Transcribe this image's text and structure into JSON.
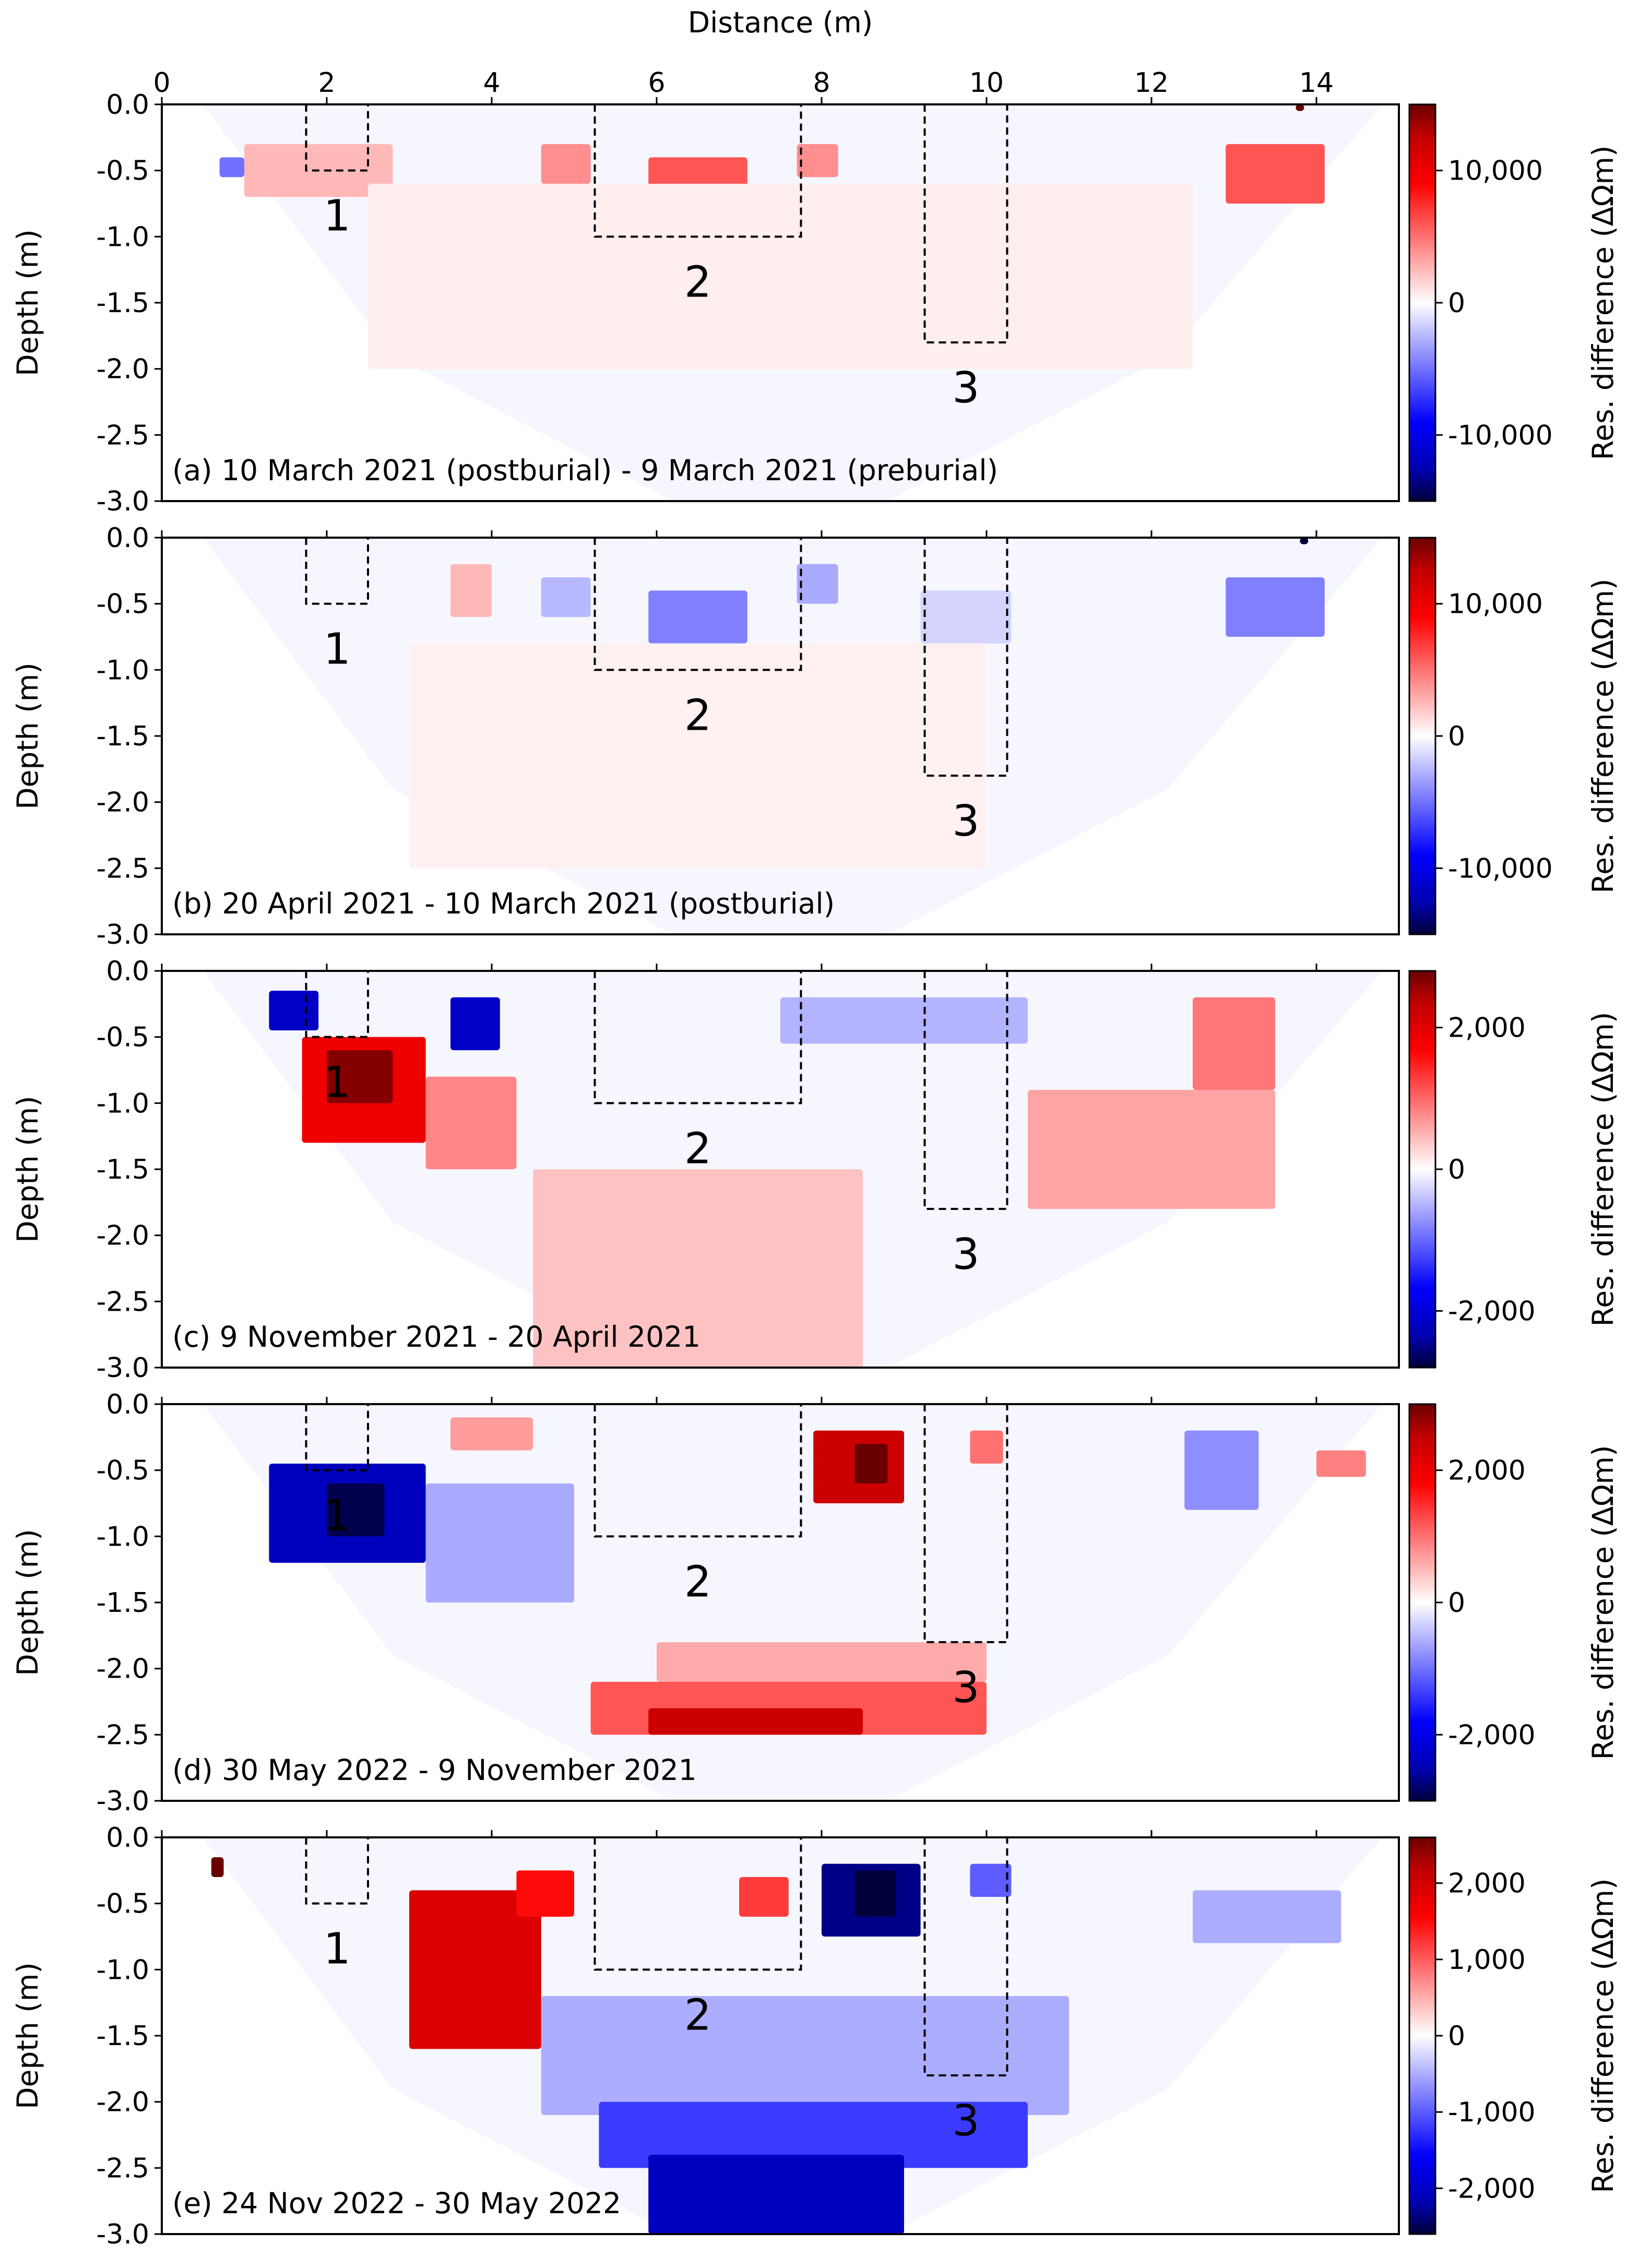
{
  "figure": {
    "xlabel": "Distance (m)",
    "ylabel": "Depth (m)",
    "colorbar_label": "Res. difference (ΔΩm)"
  },
  "chart_data": [
    {
      "type": "heatmap",
      "title": "(a) 10 March 2021 (postburial) - 9 March 2021 (preburial)",
      "xlabel": "Distance (m)",
      "ylabel": "Depth (m)",
      "xlim": [
        0,
        15
      ],
      "ylim": [
        -3.0,
        0.0
      ],
      "x_ticks": [
        0,
        2,
        4,
        6,
        8,
        10,
        12,
        14
      ],
      "y_ticks": [
        0.0,
        -0.5,
        -1.0,
        -1.5,
        -2.0,
        -2.5,
        -3.0
      ],
      "colorbar": {
        "label": "Res. difference (ΔΩm)",
        "min": -15000,
        "max": 15000,
        "ticks": [
          10000,
          0,
          -10000
        ],
        "tick_labels": [
          "10,000",
          "0",
          "-10,000"
        ]
      },
      "graves": [
        {
          "label": "1",
          "x": [
            1.75,
            2.5
          ],
          "depth": -0.5
        },
        {
          "label": "2",
          "x": [
            5.25,
            7.75
          ],
          "depth": -1.0
        },
        {
          "label": "3",
          "x": [
            9.25,
            10.25
          ],
          "depth": -1.8
        }
      ],
      "anomalies": [
        {
          "x": [
            1.0,
            2.8
          ],
          "depth": [
            -0.3,
            -0.7
          ],
          "value": 2500
        },
        {
          "x": [
            4.6,
            5.2
          ],
          "depth": [
            -0.3,
            -0.6
          ],
          "value": 4000
        },
        {
          "x": [
            5.9,
            7.1
          ],
          "depth": [
            -0.4,
            -0.8
          ],
          "value": 6000
        },
        {
          "x": [
            7.7,
            8.2
          ],
          "depth": [
            -0.3,
            -0.55
          ],
          "value": 4000
        },
        {
          "x": [
            12.9,
            14.1
          ],
          "depth": [
            -0.3,
            -0.75
          ],
          "value": 6000
        },
        {
          "x": [
            2.5,
            12.5
          ],
          "depth": [
            -0.6,
            -2.0
          ],
          "value": 600
        },
        {
          "x": [
            0.7,
            1.0
          ],
          "depth": [
            -0.4,
            -0.55
          ],
          "value": -5000
        },
        {
          "x": [
            13.75,
            13.85
          ],
          "depth": [
            0.0,
            -0.05
          ],
          "value": 15000
        }
      ]
    },
    {
      "type": "heatmap",
      "title": "(b) 20 April 2021 - 10 March 2021 (postburial)",
      "xlabel": "Distance (m)",
      "ylabel": "Depth (m)",
      "xlim": [
        0,
        15
      ],
      "ylim": [
        -3.0,
        0.0
      ],
      "x_ticks": [
        0,
        2,
        4,
        6,
        8,
        10,
        12,
        14
      ],
      "y_ticks": [
        0.0,
        -0.5,
        -1.0,
        -1.5,
        -2.0,
        -2.5,
        -3.0
      ],
      "colorbar": {
        "label": "Res. difference (ΔΩm)",
        "min": -15000,
        "max": 15000,
        "ticks": [
          10000,
          0,
          -10000
        ],
        "tick_labels": [
          "10,000",
          "0",
          "-10,000"
        ]
      },
      "graves": [
        {
          "label": "1",
          "x": [
            1.75,
            2.5
          ],
          "depth": -0.5
        },
        {
          "label": "2",
          "x": [
            5.25,
            7.75
          ],
          "depth": -1.0
        },
        {
          "label": "3",
          "x": [
            9.25,
            10.25
          ],
          "depth": -1.8
        }
      ],
      "anomalies": [
        {
          "x": [
            3.5,
            4.0
          ],
          "depth": [
            -0.2,
            -0.6
          ],
          "value": 2500
        },
        {
          "x": [
            4.6,
            5.2
          ],
          "depth": [
            -0.3,
            -0.6
          ],
          "value": -2500
        },
        {
          "x": [
            5.9,
            7.1
          ],
          "depth": [
            -0.4,
            -0.8
          ],
          "value": -4500
        },
        {
          "x": [
            7.7,
            8.2
          ],
          "depth": [
            -0.2,
            -0.5
          ],
          "value": -3000
        },
        {
          "x": [
            9.2,
            10.3
          ],
          "depth": [
            -0.4,
            -0.8
          ],
          "value": -1500
        },
        {
          "x": [
            12.9,
            14.1
          ],
          "depth": [
            -0.3,
            -0.75
          ],
          "value": -4500
        },
        {
          "x": [
            3.0,
            10.0
          ],
          "depth": [
            -0.8,
            -2.5
          ],
          "value": 500
        },
        {
          "x": [
            13.8,
            13.9
          ],
          "depth": [
            0.0,
            -0.05
          ],
          "value": -15000
        }
      ]
    },
    {
      "type": "heatmap",
      "title": "(c) 9 November 2021 - 20 April 2021",
      "xlabel": "Distance (m)",
      "ylabel": "Depth (m)",
      "xlim": [
        0,
        15
      ],
      "ylim": [
        -3.0,
        0.0
      ],
      "x_ticks": [
        0,
        2,
        4,
        6,
        8,
        10,
        12,
        14
      ],
      "y_ticks": [
        0.0,
        -0.5,
        -1.0,
        -1.5,
        -2.0,
        -2.5,
        -3.0
      ],
      "colorbar": {
        "label": "Res. difference (ΔΩm)",
        "min": -2800,
        "max": 2800,
        "ticks": [
          2000,
          0,
          -2000
        ],
        "tick_labels": [
          "2,000",
          "0",
          "-2,000"
        ]
      },
      "graves": [
        {
          "label": "1",
          "x": [
            1.75,
            2.5
          ],
          "depth": -0.5
        },
        {
          "label": "2",
          "x": [
            5.25,
            7.75
          ],
          "depth": -1.0
        },
        {
          "label": "3",
          "x": [
            9.25,
            10.25
          ],
          "depth": -1.8
        }
      ],
      "anomalies": [
        {
          "x": [
            1.3,
            1.9
          ],
          "depth": [
            -0.15,
            -0.45
          ],
          "value": -2000
        },
        {
          "x": [
            3.5,
            4.1
          ],
          "depth": [
            -0.2,
            -0.6
          ],
          "value": -2000
        },
        {
          "x": [
            1.7,
            3.2
          ],
          "depth": [
            -0.5,
            -1.3
          ],
          "value": 1800
        },
        {
          "x": [
            2.0,
            2.8
          ],
          "depth": [
            -0.6,
            -1.0
          ],
          "value": 2600
        },
        {
          "x": [
            3.2,
            4.3
          ],
          "depth": [
            -0.8,
            -1.5
          ],
          "value": 800
        },
        {
          "x": [
            4.5,
            8.5
          ],
          "depth": [
            -1.5,
            -3.0
          ],
          "value": 400
        },
        {
          "x": [
            10.5,
            13.5
          ],
          "depth": [
            -0.9,
            -1.8
          ],
          "value": 600
        },
        {
          "x": [
            12.5,
            13.5
          ],
          "depth": [
            -0.2,
            -0.9
          ],
          "value": 900
        },
        {
          "x": [
            7.5,
            10.5
          ],
          "depth": [
            -0.2,
            -0.55
          ],
          "value": -500
        }
      ]
    },
    {
      "type": "heatmap",
      "title": "(d) 30 May 2022 - 9 November 2021",
      "xlabel": "Distance (m)",
      "ylabel": "Depth (m)",
      "xlim": [
        0,
        15
      ],
      "ylim": [
        -3.0,
        0.0
      ],
      "x_ticks": [
        0,
        2,
        4,
        6,
        8,
        10,
        12,
        14
      ],
      "y_ticks": [
        0.0,
        -0.5,
        -1.0,
        -1.5,
        -2.0,
        -2.5,
        -3.0
      ],
      "colorbar": {
        "label": "Res. difference (ΔΩm)",
        "min": -3000,
        "max": 3000,
        "ticks": [
          2000,
          0,
          -2000
        ],
        "tick_labels": [
          "2,000",
          "0",
          "-2,000"
        ]
      },
      "graves": [
        {
          "label": "1",
          "x": [
            1.75,
            2.5
          ],
          "depth": -0.5
        },
        {
          "label": "2",
          "x": [
            5.25,
            7.75
          ],
          "depth": -1.0
        },
        {
          "label": "3",
          "x": [
            9.25,
            10.25
          ],
          "depth": -1.8
        }
      ],
      "anomalies": [
        {
          "x": [
            1.3,
            3.2
          ],
          "depth": [
            -0.45,
            -1.2
          ],
          "value": -2200
        },
        {
          "x": [
            2.0,
            2.7
          ],
          "depth": [
            -0.6,
            -1.0
          ],
          "value": -2900
        },
        {
          "x": [
            7.9,
            9.0
          ],
          "depth": [
            -0.2,
            -0.75
          ],
          "value": 2200
        },
        {
          "x": [
            8.4,
            8.8
          ],
          "depth": [
            -0.3,
            -0.6
          ],
          "value": 3000
        },
        {
          "x": [
            12.4,
            13.3
          ],
          "depth": [
            -0.2,
            -0.8
          ],
          "value": -800
        },
        {
          "x": [
            3.2,
            5.0
          ],
          "depth": [
            -0.6,
            -1.5
          ],
          "value": -600
        },
        {
          "x": [
            6.0,
            10.0
          ],
          "depth": [
            -1.8,
            -2.1
          ],
          "value": 600
        },
        {
          "x": [
            5.2,
            10.0
          ],
          "depth": [
            -2.1,
            -2.5
          ],
          "value": 1200
        },
        {
          "x": [
            5.9,
            8.5
          ],
          "depth": [
            -2.3,
            -2.5
          ],
          "value": 2200
        },
        {
          "x": [
            3.5,
            4.5
          ],
          "depth": [
            -0.1,
            -0.35
          ],
          "value": 700
        },
        {
          "x": [
            9.8,
            10.2
          ],
          "depth": [
            -0.2,
            -0.45
          ],
          "value": 1000
        },
        {
          "x": [
            14.0,
            14.6
          ],
          "depth": [
            -0.35,
            -0.55
          ],
          "value": 900
        }
      ]
    },
    {
      "type": "heatmap",
      "title": "(e) 24 Nov 2022 - 30 May 2022",
      "xlabel": "Distance (m)",
      "ylabel": "Depth (m)",
      "xlim": [
        0,
        15
      ],
      "ylim": [
        -3.0,
        0.0
      ],
      "x_ticks": [
        0,
        2,
        4,
        6,
        8,
        10,
        12,
        14
      ],
      "y_ticks": [
        0.0,
        -0.5,
        -1.0,
        -1.5,
        -2.0,
        -2.5,
        -3.0
      ],
      "colorbar": {
        "label": "Res. difference (ΔΩm)",
        "min": -2600,
        "max": 2600,
        "ticks": [
          2000,
          1000,
          0,
          -1000,
          -2000
        ],
        "tick_labels": [
          "2,000",
          "1,000",
          "0",
          "-1,000",
          "-2,000"
        ]
      },
      "graves": [
        {
          "label": "1",
          "x": [
            1.75,
            2.5
          ],
          "depth": -0.5
        },
        {
          "label": "2",
          "x": [
            5.25,
            7.75
          ],
          "depth": -1.0
        },
        {
          "label": "3",
          "x": [
            9.25,
            10.25
          ],
          "depth": -1.8
        }
      ],
      "anomalies": [
        {
          "x": [
            3.0,
            4.6
          ],
          "depth": [
            -0.4,
            -1.6
          ],
          "value": 1800
        },
        {
          "x": [
            4.3,
            5.0
          ],
          "depth": [
            -0.25,
            -0.6
          ],
          "value": 1500
        },
        {
          "x": [
            8.0,
            9.2
          ],
          "depth": [
            -0.2,
            -0.75
          ],
          "value": -2200
        },
        {
          "x": [
            8.4,
            8.9
          ],
          "depth": [
            -0.25,
            -0.6
          ],
          "value": -2600
        },
        {
          "x": [
            7.0,
            7.6
          ],
          "depth": [
            -0.3,
            -0.6
          ],
          "value": 1200
        },
        {
          "x": [
            9.8,
            10.3
          ],
          "depth": [
            -0.2,
            -0.45
          ],
          "value": -1000
        },
        {
          "x": [
            0.6,
            0.75
          ],
          "depth": [
            -0.15,
            -0.3
          ],
          "value": 2600
        },
        {
          "x": [
            4.6,
            11.0
          ],
          "depth": [
            -1.2,
            -2.1
          ],
          "value": -500
        },
        {
          "x": [
            5.3,
            10.5
          ],
          "depth": [
            -2.0,
            -2.5
          ],
          "value": -1200
        },
        {
          "x": [
            5.9,
            9.0
          ],
          "depth": [
            -2.4,
            -3.0
          ],
          "value": -1900
        },
        {
          "x": [
            12.5,
            14.3
          ],
          "depth": [
            -0.4,
            -0.8
          ],
          "value": -500
        }
      ]
    }
  ]
}
